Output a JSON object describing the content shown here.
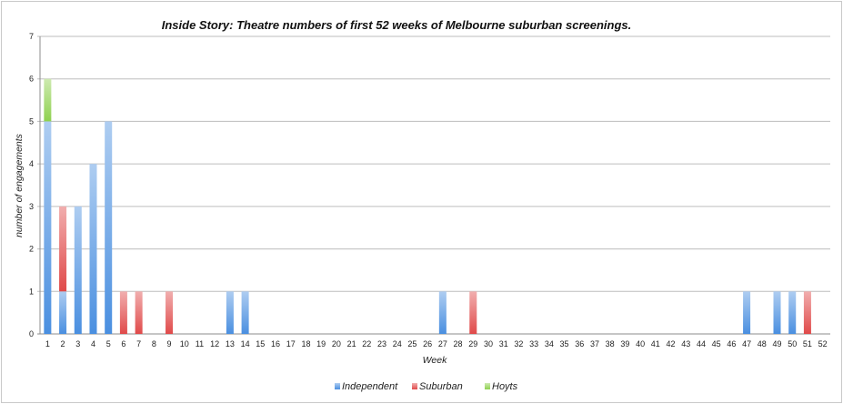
{
  "chart_data": {
    "type": "bar",
    "stacked": true,
    "title": "Inside Story: Theatre numbers of first 52 weeks of Melbourne suburban screenings.",
    "xlabel": "Week",
    "ylabel": "number of engagements",
    "ylim": [
      0,
      7
    ],
    "yticks": [
      0,
      1,
      2,
      3,
      4,
      5,
      6,
      7
    ],
    "grid": true,
    "legend_position": "bottom",
    "categories": [
      "1",
      "2",
      "3",
      "4",
      "5",
      "6",
      "7",
      "8",
      "9",
      "10",
      "11",
      "12",
      "13",
      "14",
      "15",
      "16",
      "17",
      "18",
      "19",
      "20",
      "21",
      "22",
      "23",
      "24",
      "25",
      "26",
      "27",
      "28",
      "29",
      "30",
      "31",
      "32",
      "33",
      "34",
      "35",
      "36",
      "37",
      "38",
      "39",
      "40",
      "41",
      "42",
      "43",
      "44",
      "45",
      "46",
      "47",
      "48",
      "49",
      "50",
      "51",
      "52"
    ],
    "series": [
      {
        "name": "Independent",
        "color": "#4a8fe0",
        "values": [
          5,
          1,
          3,
          4,
          5,
          0,
          0,
          0,
          0,
          0,
          0,
          0,
          1,
          1,
          0,
          0,
          0,
          0,
          0,
          0,
          0,
          0,
          0,
          0,
          0,
          0,
          1,
          0,
          0,
          0,
          0,
          0,
          0,
          0,
          0,
          0,
          0,
          0,
          0,
          0,
          0,
          0,
          0,
          0,
          0,
          0,
          1,
          0,
          1,
          1,
          0,
          0
        ]
      },
      {
        "name": "Suburban",
        "color": "#e04a4a",
        "values": [
          0,
          2,
          0,
          0,
          0,
          1,
          1,
          0,
          1,
          0,
          0,
          0,
          0,
          0,
          0,
          0,
          0,
          0,
          0,
          0,
          0,
          0,
          0,
          0,
          0,
          0,
          0,
          0,
          1,
          0,
          0,
          0,
          0,
          0,
          0,
          0,
          0,
          0,
          0,
          0,
          0,
          0,
          0,
          0,
          0,
          0,
          0,
          0,
          0,
          0,
          1,
          0
        ]
      },
      {
        "name": "Hoyts",
        "color": "#8fd14f",
        "values": [
          1,
          0,
          0,
          0,
          0,
          0,
          0,
          0,
          0,
          0,
          0,
          0,
          0,
          0,
          0,
          0,
          0,
          0,
          0,
          0,
          0,
          0,
          0,
          0,
          0,
          0,
          0,
          0,
          0,
          0,
          0,
          0,
          0,
          0,
          0,
          0,
          0,
          0,
          0,
          0,
          0,
          0,
          0,
          0,
          0,
          0,
          0,
          0,
          0,
          0,
          0,
          0
        ]
      }
    ]
  }
}
